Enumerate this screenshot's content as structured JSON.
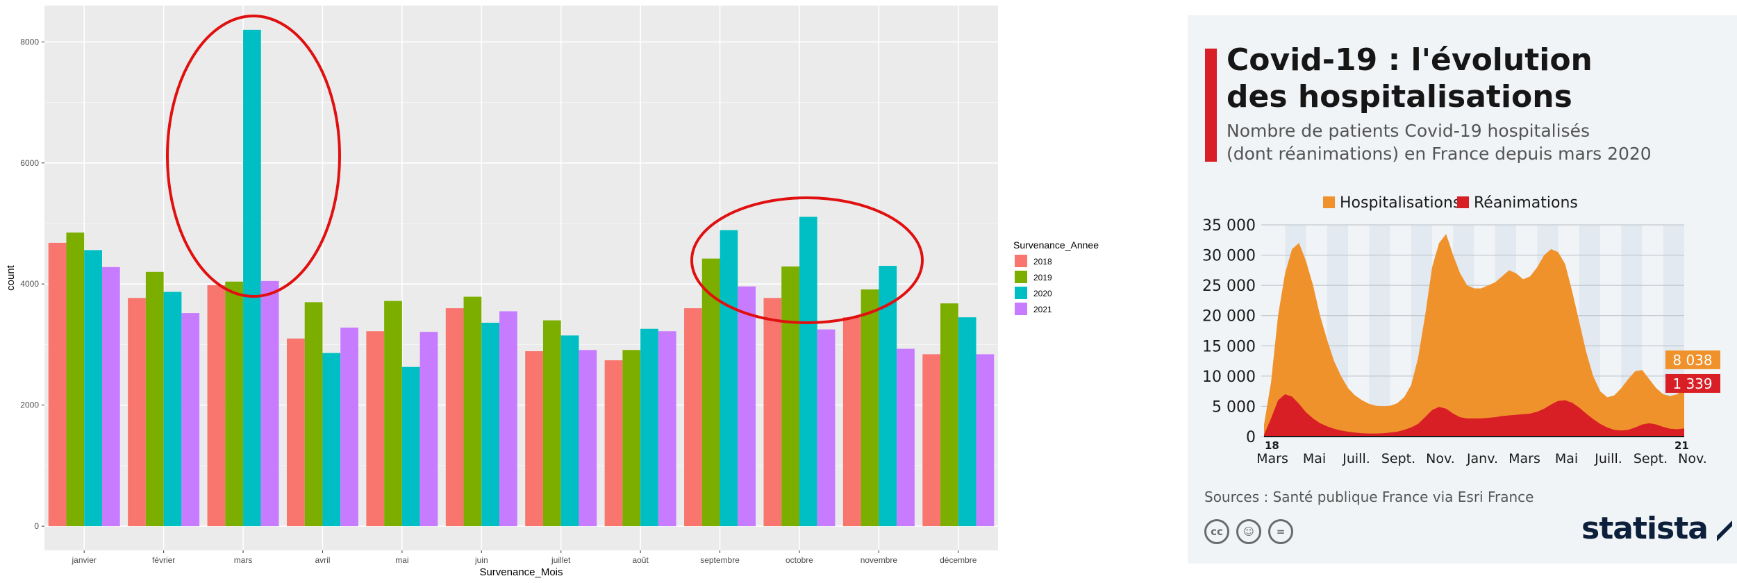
{
  "left": {
    "chart_data": {
      "type": "bar",
      "categories": [
        "janvier",
        "février",
        "mars",
        "avril",
        "mai",
        "juin",
        "juillet",
        "août",
        "septembre",
        "octobre",
        "novembre",
        "décembre"
      ],
      "series": [
        {
          "name": "2018",
          "color": "#f8766d",
          "values": [
            4680,
            3770,
            3980,
            3100,
            3220,
            3600,
            2890,
            2740,
            3600,
            3770,
            3450,
            2840
          ]
        },
        {
          "name": "2019",
          "color": "#7cae00",
          "values": [
            4850,
            4200,
            4040,
            3700,
            3720,
            3790,
            3400,
            2910,
            4420,
            4290,
            3910,
            3680
          ]
        },
        {
          "name": "2020",
          "color": "#00bfc4",
          "values": [
            4560,
            3870,
            8200,
            2860,
            2630,
            3360,
            3150,
            3260,
            4890,
            5110,
            4300,
            3450
          ]
        },
        {
          "name": "2021",
          "color": "#c77cff",
          "values": [
            4280,
            3520,
            4050,
            3280,
            3210,
            3550,
            2910,
            3220,
            3960,
            3250,
            2930,
            2840
          ]
        }
      ],
      "title": "",
      "xlabel": "Survenance_Mois",
      "ylabel": "count",
      "ylim": [
        0,
        8600
      ],
      "yticks": [
        0,
        2000,
        4000,
        6000,
        8000
      ],
      "grid": true,
      "legend": {
        "title": "Survenance_Annee",
        "placement": "right",
        "items": [
          "2018",
          "2019",
          "2020",
          "2021"
        ]
      },
      "annotations": [
        {
          "shape": "ellipse",
          "color": "#e01010",
          "around": "mars"
        },
        {
          "shape": "ellipse",
          "color": "#e01010",
          "around": "septembre-octobre"
        }
      ]
    }
  },
  "right": {
    "title": "Covid-19 : l'évolution\ndes hospitalisations",
    "subtitle": "Nombre de patients Covid-19 hospitalisés\n(dont réanimations) en France depuis mars 2020",
    "source": "Sources : Santé publique France via Esri France",
    "brand": "statista",
    "license_icons": [
      "cc",
      "by",
      "="
    ],
    "colors": {
      "hospitalisations": "#f0922c",
      "reanimations": "#d81f26",
      "accent": "#d81f26"
    },
    "chart_data": {
      "type": "area",
      "series": [
        {
          "name": "Hospitalisations",
          "last_label": "8 038",
          "values": [
            2000,
            9000,
            20000,
            27000,
            31000,
            32000,
            29000,
            25000,
            20000,
            16000,
            12500,
            10000,
            8000,
            6800,
            6000,
            5400,
            5100,
            5000,
            5100,
            5500,
            6500,
            8500,
            13000,
            20000,
            28000,
            32000,
            33500,
            30000,
            27000,
            25000,
            24500,
            24500,
            25000,
            25500,
            26500,
            27500,
            27000,
            26000,
            26500,
            28000,
            30000,
            31000,
            30500,
            28500,
            24000,
            19000,
            14000,
            10000,
            7500,
            6500,
            6800,
            8000,
            9500,
            10800,
            11000,
            9500,
            8000,
            7000,
            6700,
            7000,
            8038
          ]
        },
        {
          "name": "Réanimations",
          "last_label": "1 339",
          "values": [
            300,
            3000,
            6000,
            7000,
            6600,
            5400,
            4000,
            3000,
            2200,
            1700,
            1300,
            1000,
            800,
            650,
            550,
            500,
            500,
            550,
            650,
            800,
            1100,
            1500,
            2100,
            3200,
            4400,
            4900,
            4600,
            3800,
            3200,
            3000,
            3000,
            3000,
            3100,
            3200,
            3400,
            3500,
            3600,
            3700,
            3800,
            4100,
            4600,
            5300,
            5900,
            6000,
            5600,
            4800,
            3800,
            2900,
            2100,
            1500,
            1100,
            1000,
            1100,
            1500,
            2000,
            2200,
            2000,
            1600,
            1300,
            1200,
            1339
          ]
        }
      ],
      "yticks": [
        "0",
        "5 000",
        "10 000",
        "15 000",
        "20 000",
        "25 000",
        "30 000",
        "35 000"
      ],
      "ylim": [
        0,
        35000
      ],
      "x_start_label": "18",
      "x_end_label": "21",
      "months": [
        "Mars",
        "Mai",
        "Juill.",
        "Sept.",
        "Nov.",
        "Janv.",
        "Mars",
        "Mai",
        "Juill.",
        "Sept.",
        "Nov."
      ],
      "years": [
        "2020",
        "2021"
      ],
      "legend": {
        "placement": "top"
      }
    }
  }
}
